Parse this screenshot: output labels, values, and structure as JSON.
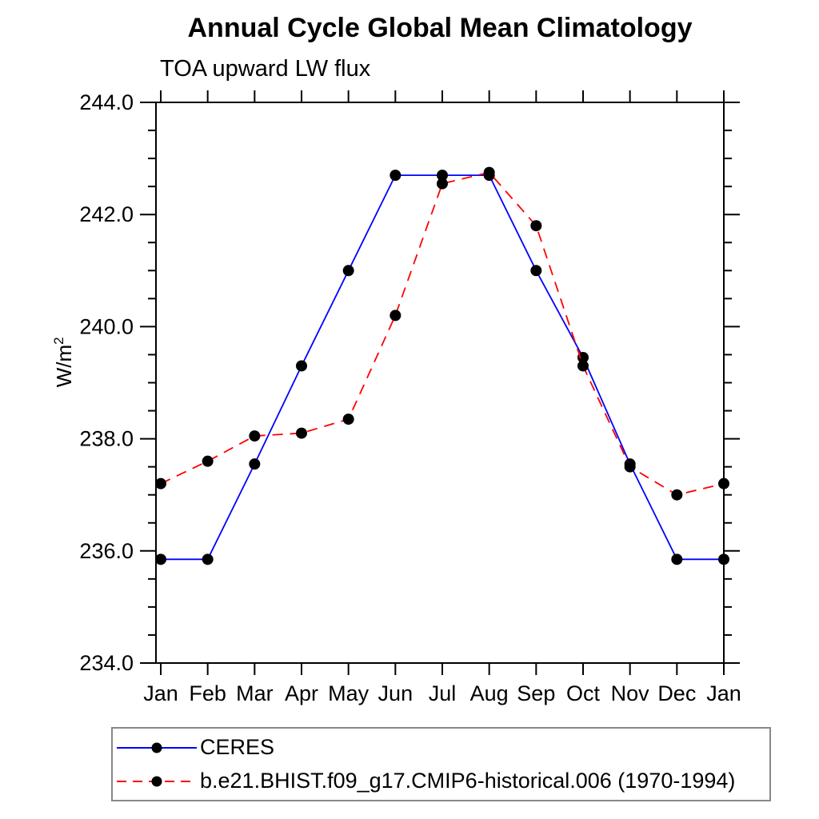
{
  "title": "Annual Cycle Global Mean Climatology",
  "subtitle": "TOA upward LW flux",
  "ylabel": {
    "base": "W/m",
    "sup": "2"
  },
  "chart_data": {
    "type": "line",
    "categories": [
      "Jan",
      "Feb",
      "Mar",
      "Apr",
      "May",
      "Jun",
      "Jul",
      "Aug",
      "Sep",
      "Oct",
      "Nov",
      "Dec",
      "Jan"
    ],
    "series": [
      {
        "name": "CERES",
        "color": "#0000ff",
        "line_style": "solid",
        "marker": "filled-circle",
        "values": [
          235.85,
          235.85,
          237.55,
          239.3,
          241.0,
          242.7,
          242.7,
          242.7,
          241.0,
          239.45,
          237.55,
          235.85,
          235.85
        ]
      },
      {
        "name": "b.e21.BHIST.f09_g17.CMIP6-historical.006 (1970-1994)",
        "color": "#ff0000",
        "line_style": "dashed",
        "marker": "filled-circle",
        "values": [
          237.2,
          237.6,
          238.05,
          238.1,
          238.35,
          240.2,
          242.55,
          242.75,
          241.8,
          239.3,
          237.5,
          237.0,
          237.2
        ]
      }
    ],
    "xlabel": "",
    "ylabel": "W/m2",
    "ylim": [
      234.0,
      244.0
    ],
    "y_major_step": 2.0,
    "y_minor_step": 0.5,
    "y_tick_labels": [
      "234.0",
      "236.0",
      "238.0",
      "240.0",
      "242.0",
      "244.0"
    ],
    "grid": false,
    "marker_color": "#000000",
    "axis_color": "#000000",
    "legend_position": "bottom-left-box"
  }
}
